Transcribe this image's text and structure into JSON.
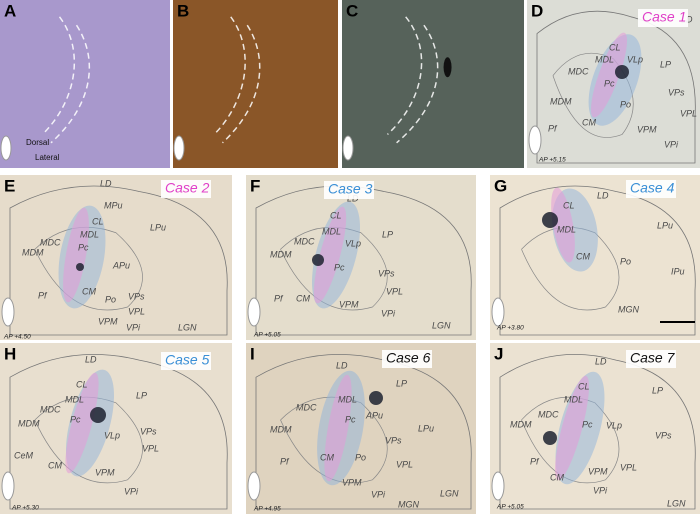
{
  "panels": [
    {
      "letter": "A",
      "labels": [
        "Dorsal",
        "Lateral"
      ]
    },
    {
      "letter": "B"
    },
    {
      "letter": "C"
    },
    {
      "letter": "D",
      "case": "Case 1",
      "case_color": "#e040c8",
      "ap": "AP +5.15",
      "labels": [
        "LD",
        "CL",
        "MDL",
        "VLp",
        "LP",
        "MDC",
        "MDM",
        "Pc",
        "Po",
        "VPs",
        "CM",
        "VPL",
        "VPM",
        "Pf",
        "VPi"
      ]
    },
    {
      "letter": "E",
      "case": "Case 2",
      "case_color": "#e040c8",
      "ap": "AP +4.50",
      "labels": [
        "LD",
        "MPu",
        "CL",
        "MDL",
        "LPu",
        "MDC",
        "Pc",
        "MDM",
        "APu",
        "Pf",
        "CM",
        "Po",
        "VPs",
        "VPL",
        "VPM",
        "VPi",
        "LGN"
      ]
    },
    {
      "letter": "F",
      "case": "Case 3",
      "case_color": "#3a8fd6",
      "ap": "AP +5.05",
      "labels": [
        "LD",
        "CL",
        "LP",
        "MDL",
        "MDC",
        "VLp",
        "MDM",
        "Pc",
        "VPs",
        "Pf",
        "CM",
        "VPM",
        "VPL",
        "VPi",
        "LGN"
      ]
    },
    {
      "letter": "G",
      "case": "Case 4",
      "case_color": "#3a8fd6",
      "ap": "AP +3.80",
      "labels": [
        "LD",
        "CL",
        "MDL",
        "LPu",
        "Po",
        "CM",
        "IPu",
        "MGN"
      ]
    },
    {
      "letter": "H",
      "case": "Case 5",
      "case_color": "#3a8fd6",
      "ap": "AP +5.30",
      "labels": [
        "LD",
        "CL",
        "LP",
        "MDL",
        "MDC",
        "MDM",
        "Pc",
        "VLp",
        "VPs",
        "CeM",
        "CM",
        "VPL",
        "VPM",
        "VPi"
      ]
    },
    {
      "letter": "I",
      "case": "Case 6",
      "case_color": "#111111",
      "ap": "AP +4.95",
      "labels": [
        "LD",
        "LP",
        "MDC",
        "MDL",
        "APu",
        "LPu",
        "MDM",
        "Pc",
        "VPs",
        "Pf",
        "CM",
        "Po",
        "VPL",
        "VPM",
        "VPi",
        "MGN",
        "LGN"
      ]
    },
    {
      "letter": "J",
      "case": "Case 7",
      "case_color": "#111111",
      "ap": "AP +5.05",
      "labels": [
        "LD",
        "CL",
        "LP",
        "MDC",
        "MDL",
        "VLp",
        "MDM",
        "Pc",
        "VPs",
        "CM",
        "Pf",
        "VPM",
        "VPL",
        "VPi",
        "LGN"
      ]
    }
  ]
}
